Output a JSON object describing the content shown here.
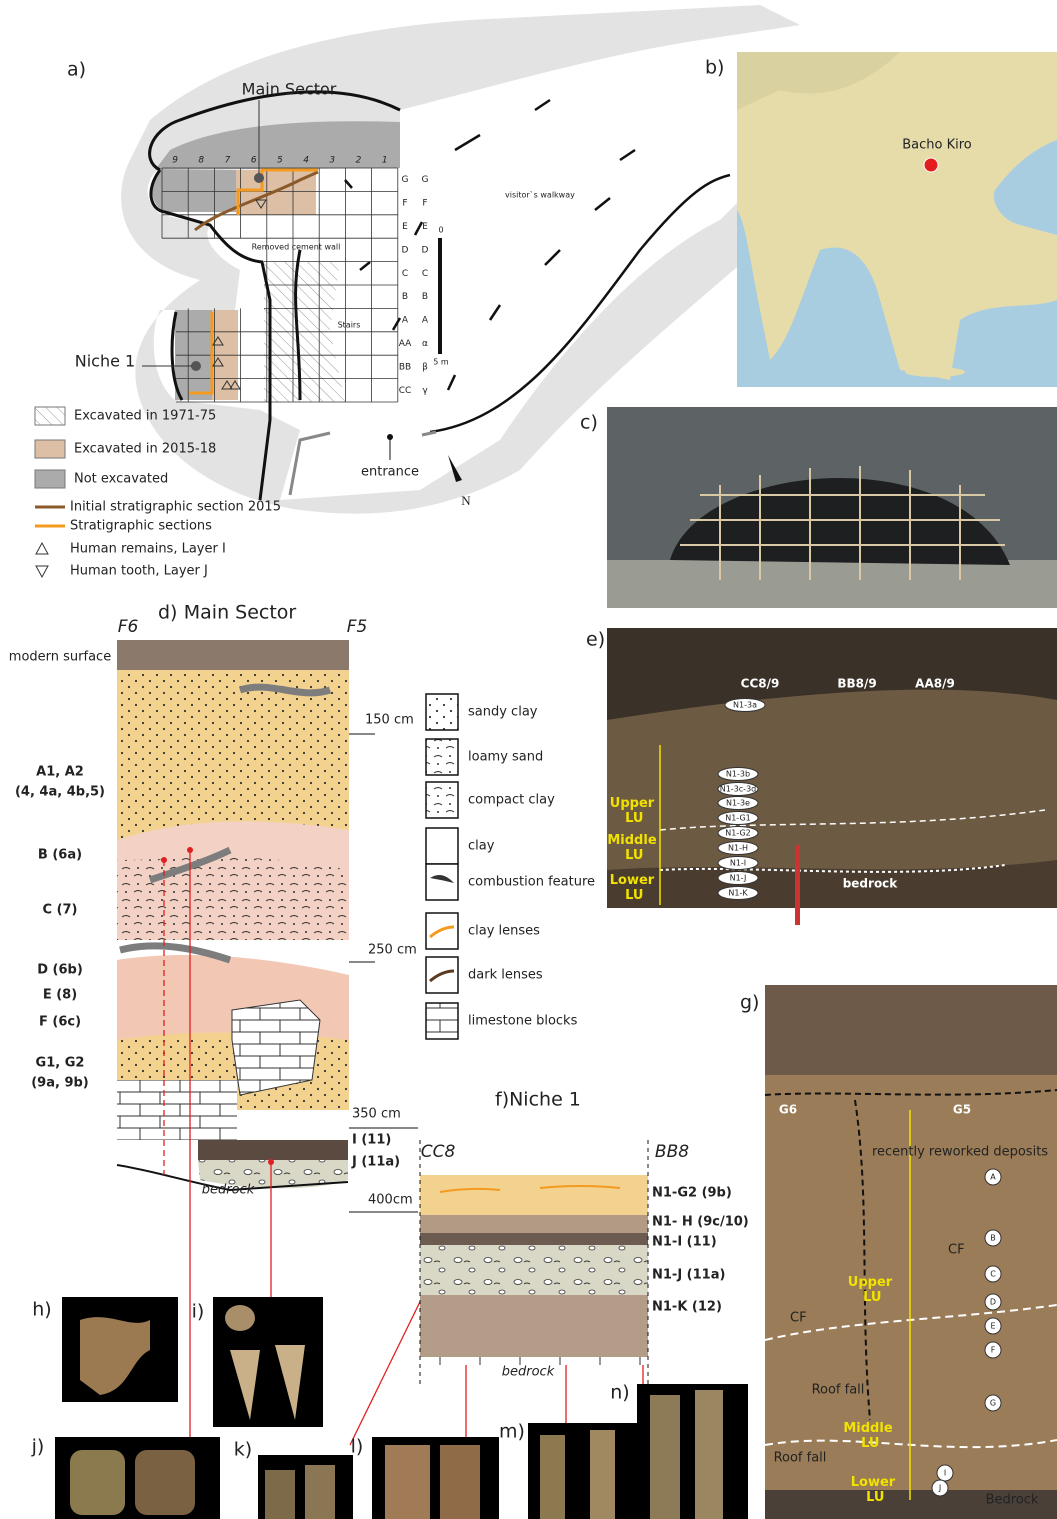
{
  "panel_a": {
    "label": "a)",
    "main_sector": "Main Sector",
    "niche": "Niche 1",
    "columns": [
      "9",
      "8",
      "7",
      "6",
      "5",
      "4",
      "3",
      "2",
      "1"
    ],
    "rows": [
      "G",
      "F",
      "E",
      "D",
      "C",
      "B",
      "A",
      "AA",
      "BB",
      "CC"
    ],
    "rows_alt": [
      "G",
      "F",
      "E",
      "D",
      "C",
      "B",
      "A",
      "α",
      "β",
      "γ"
    ],
    "walkway": "visitor`s walkway",
    "wall": "Removed  cement wall",
    "stairs": "Stairs",
    "scale_zero": "0",
    "scale_length": "5 m",
    "entrance": "entrance",
    "north": "N",
    "legend": [
      "Excavated in 1971-75",
      "Excavated in 2015-18",
      "Not excavated",
      "Initial stratigraphic section 2015",
      "Stratigraphic sections",
      "Human remains, Layer I",
      "Human tooth, Layer J"
    ]
  },
  "panel_b": {
    "label": "b)",
    "site": "Bacho Kiro"
  },
  "panel_c": {
    "label": "c)"
  },
  "panel_d": {
    "label": "d)",
    "title": "Main Sector",
    "left_profile": "F6",
    "right_profile": "F5",
    "surface": "modern surface",
    "layers": [
      "A1, A2",
      "(4, 4a, 4b,5)",
      "B (6a)",
      "C (7)",
      "D (6b)",
      "E (8)",
      "F (6c)",
      "G1, G2",
      "(9a, 9b)",
      "I (11)",
      "J (11a)"
    ],
    "bedrock": "bedrock",
    "depths": [
      "150 cm",
      "250 cm",
      "350 cm",
      "400cm"
    ],
    "legend": [
      "sandy clay",
      "loamy sand",
      "compact clay",
      "clay",
      "combustion feature",
      "clay lenses",
      "dark lenses",
      "limestone blocks"
    ]
  },
  "panel_e": {
    "label": "e)",
    "squares": [
      "CC8/9",
      "BB8/9",
      "AA8/9"
    ],
    "tags": [
      "N1-3a",
      "N1-3b",
      "N1-3c-3d",
      "N1-3e",
      "N1-G1",
      "N1-G2",
      "N1-H",
      "N1-I",
      "N1-J",
      "N1-K"
    ],
    "units": [
      "Upper LU",
      "Middle LU",
      "Lower LU"
    ],
    "bedrock": "bedrock"
  },
  "panel_f": {
    "label": "f)",
    "title": "Niche 1",
    "left_profile": "CC8",
    "right_profile": "BB8",
    "layers": [
      "N1-G2 (9b)",
      "N1- H (9c/10)",
      "N1-I (11)",
      "N1-J (11a)",
      "N1-K (12)"
    ],
    "bedrock": "bedrock"
  },
  "panel_g": {
    "label": "g)",
    "squares": [
      "G6",
      "G5"
    ],
    "reworked": "recently reworked deposits",
    "layers": [
      "A",
      "B",
      "C",
      "D",
      "E",
      "F",
      "G",
      "I",
      "J"
    ],
    "features": [
      "CF",
      "CF"
    ],
    "units": [
      "Upper LU",
      "Middle LU",
      "Lower LU"
    ],
    "roof_falls": [
      "Roof fall",
      "Roof fall"
    ],
    "bedrock": "Bedrock"
  },
  "photos": [
    "h)",
    "i)",
    "j)",
    "k)",
    "l)",
    "m)",
    "n)"
  ]
}
